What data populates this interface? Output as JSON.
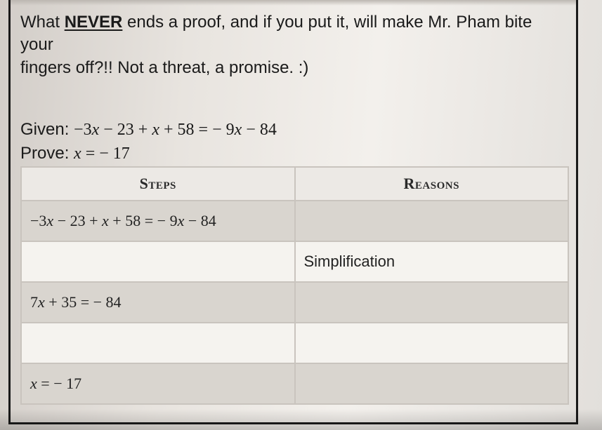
{
  "question": {
    "line1_pre": "What ",
    "never": "NEVER",
    "line1_post": " ends a proof, and if you put it, will make Mr. Pham bite your",
    "line2": "fingers off?!! Not a threat, a promise. :)"
  },
  "given_label": "Given: ",
  "given_expr": "−3x − 23 + x + 58 = − 9x − 84",
  "prove_label": "Prove: ",
  "prove_expr": "x = − 17",
  "table": {
    "header_steps": "Steps",
    "header_reasons": "Reasons",
    "rows": [
      {
        "step": "−3x − 23 + x + 58 = − 9x − 84",
        "reason": "",
        "shade": true
      },
      {
        "step": "",
        "reason": "Simplification",
        "shade": false
      },
      {
        "step": "7x + 35 = − 84",
        "reason": "",
        "shade": true
      },
      {
        "step": "",
        "reason": "",
        "shade": false
      },
      {
        "step": "x = − 17",
        "reason": "",
        "shade": true
      }
    ],
    "colors": {
      "border": "#c9c4be",
      "header_bg": "#ece9e5",
      "shade_bg": "#d9d5cf",
      "light_bg": "#f5f3ef"
    }
  }
}
